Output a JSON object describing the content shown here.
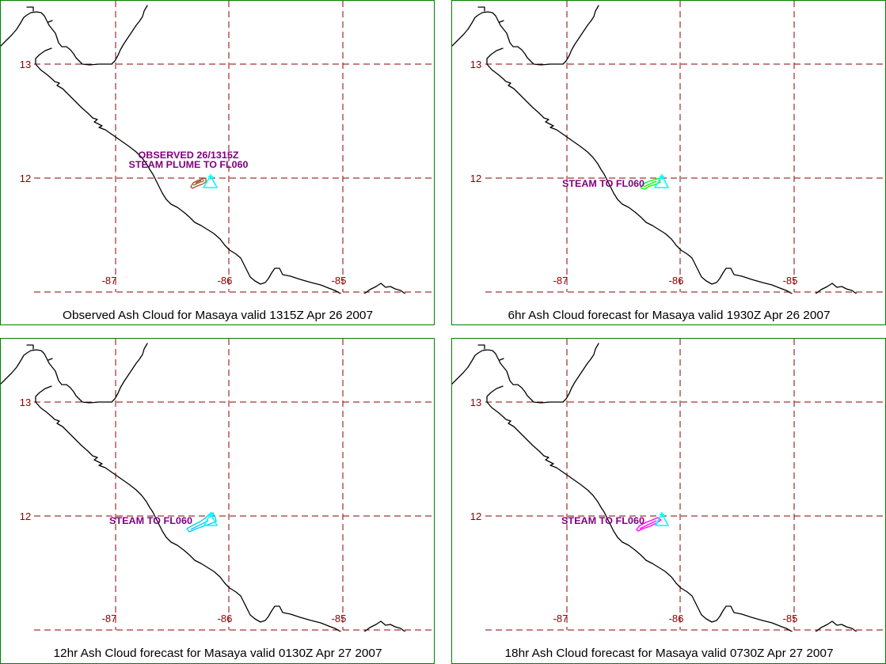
{
  "map": {
    "lat_labels": [
      "13",
      "12"
    ],
    "lon_labels": [
      "-87",
      "-86",
      "-85"
    ],
    "colors": {
      "border": "#008000",
      "grid": "#8b0000",
      "coastline": "#000000",
      "annotation": "#800080",
      "volcano": "#00ffff"
    }
  },
  "panels": [
    {
      "caption": "Observed Ash Cloud for Masaya valid 1315Z Apr 26 2007",
      "annotation_lines": [
        "OBSERVED 26/1315Z",
        "STEAM PLUME TO FL060"
      ],
      "cloud_color": "#a0522d"
    },
    {
      "caption": "6hr Ash Cloud forecast for Masaya valid 1930Z Apr 26 2007",
      "annotation_lines": [
        "STEAM TO FL060"
      ],
      "cloud_color": "#00ff00"
    },
    {
      "caption": "12hr Ash Cloud forecast for Masaya valid 0130Z Apr 27 2007",
      "annotation_lines": [
        "STEAM TO FL060"
      ],
      "cloud_color": "#00ccff"
    },
    {
      "caption": "18hr Ash Cloud forecast for Masaya valid 0730Z Apr 27 2007",
      "annotation_lines": [
        "STEAM TO FL060"
      ],
      "cloud_color": "#ff00ff"
    }
  ]
}
